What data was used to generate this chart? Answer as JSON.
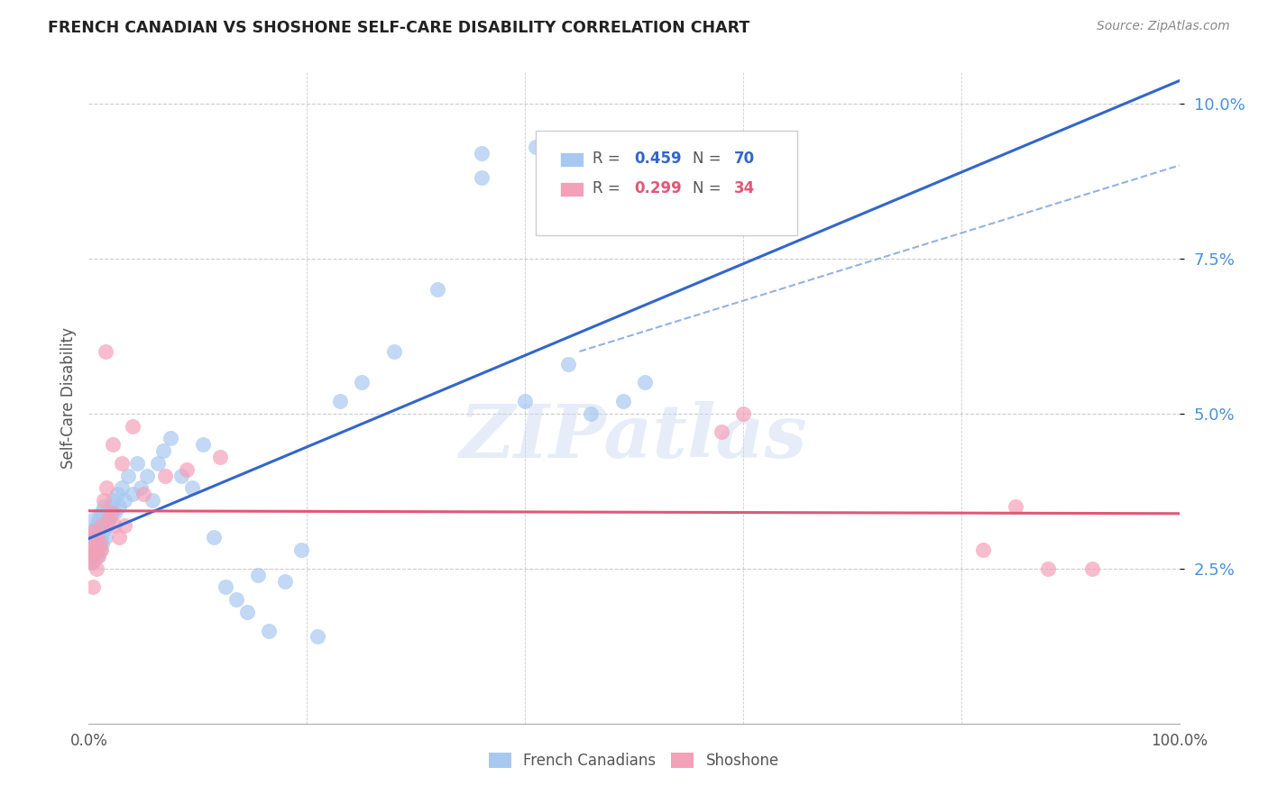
{
  "title": "FRENCH CANADIAN VS SHOSHONE SELF-CARE DISABILITY CORRELATION CHART",
  "source": "Source: ZipAtlas.com",
  "ylabel": "Self-Care Disability",
  "xlim": [
    0,
    1.0
  ],
  "ylim": [
    0.0,
    0.105
  ],
  "yticks": [
    0.025,
    0.05,
    0.075,
    0.1
  ],
  "ytick_labels": [
    "2.5%",
    "5.0%",
    "7.5%",
    "10.0%"
  ],
  "blue_R": 0.459,
  "blue_N": 70,
  "pink_R": 0.299,
  "pink_N": 34,
  "blue_color": "#a8c8f0",
  "pink_color": "#f4a0b8",
  "blue_line_color": "#3366cc",
  "pink_line_color": "#e05878",
  "dashed_line_color": "#88aadd",
  "watermark": "ZIPatlas",
  "legend1_label": "French Canadians",
  "legend2_label": "Shoshone",
  "blue_x": [
    0.001,
    0.002,
    0.002,
    0.003,
    0.003,
    0.004,
    0.004,
    0.005,
    0.005,
    0.006,
    0.006,
    0.007,
    0.007,
    0.008,
    0.008,
    0.009,
    0.009,
    0.01,
    0.01,
    0.011,
    0.011,
    0.012,
    0.012,
    0.013,
    0.014,
    0.015,
    0.016,
    0.017,
    0.018,
    0.019,
    0.02,
    0.022,
    0.024,
    0.026,
    0.028,
    0.03,
    0.033,
    0.036,
    0.04,
    0.044,
    0.048,
    0.053,
    0.058,
    0.063,
    0.068,
    0.075,
    0.085,
    0.095,
    0.105,
    0.115,
    0.125,
    0.135,
    0.145,
    0.155,
    0.165,
    0.18,
    0.195,
    0.21,
    0.23,
    0.25,
    0.28,
    0.32,
    0.36,
    0.4,
    0.44,
    0.49,
    0.36,
    0.41,
    0.46,
    0.51
  ],
  "blue_y": [
    0.028,
    0.026,
    0.029,
    0.027,
    0.031,
    0.026,
    0.03,
    0.028,
    0.033,
    0.027,
    0.031,
    0.028,
    0.032,
    0.027,
    0.03,
    0.029,
    0.033,
    0.028,
    0.031,
    0.03,
    0.034,
    0.029,
    0.032,
    0.031,
    0.035,
    0.03,
    0.033,
    0.032,
    0.034,
    0.033,
    0.035,
    0.036,
    0.034,
    0.037,
    0.035,
    0.038,
    0.036,
    0.04,
    0.037,
    0.042,
    0.038,
    0.04,
    0.036,
    0.042,
    0.044,
    0.046,
    0.04,
    0.038,
    0.045,
    0.03,
    0.022,
    0.02,
    0.018,
    0.024,
    0.015,
    0.023,
    0.028,
    0.014,
    0.052,
    0.055,
    0.06,
    0.07,
    0.092,
    0.052,
    0.058,
    0.052,
    0.088,
    0.093,
    0.05,
    0.055
  ],
  "pink_x": [
    0.001,
    0.002,
    0.002,
    0.003,
    0.004,
    0.005,
    0.006,
    0.007,
    0.008,
    0.009,
    0.01,
    0.011,
    0.012,
    0.014,
    0.016,
    0.018,
    0.021,
    0.024,
    0.028,
    0.033,
    0.015,
    0.022,
    0.03,
    0.04,
    0.05,
    0.07,
    0.09,
    0.12,
    0.58,
    0.6,
    0.82,
    0.85,
    0.88,
    0.92
  ],
  "pink_y": [
    0.028,
    0.026,
    0.03,
    0.027,
    0.022,
    0.031,
    0.028,
    0.025,
    0.03,
    0.027,
    0.029,
    0.028,
    0.032,
    0.036,
    0.038,
    0.033,
    0.034,
    0.032,
    0.03,
    0.032,
    0.06,
    0.045,
    0.042,
    0.048,
    0.037,
    0.04,
    0.041,
    0.043,
    0.047,
    0.05,
    0.028,
    0.035,
    0.025,
    0.025
  ]
}
